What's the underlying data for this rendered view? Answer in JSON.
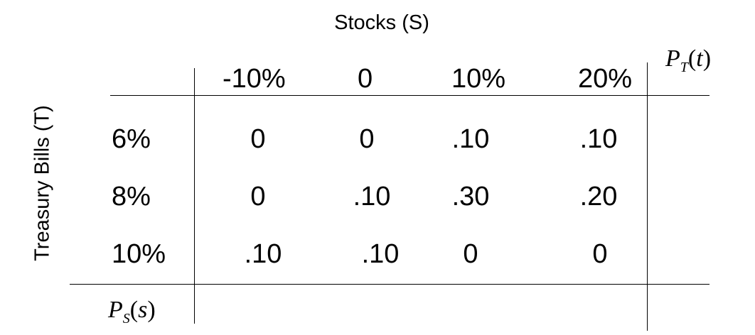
{
  "column_variable": "Stocks (S)",
  "row_variable": "Treasury Bills (T)",
  "column_headers": [
    "-10%",
    "0",
    "10%",
    "20%"
  ],
  "marginal_t": {
    "symbol": "P",
    "subscript": "T",
    "open": "(",
    "arg": "t",
    "close": ")"
  },
  "marginal_s": {
    "symbol": "P",
    "subscript": "S",
    "open": "(",
    "arg": "s",
    "close": ")"
  },
  "rows": [
    {
      "label": "6%",
      "values": [
        "0",
        "0",
        ".10",
        ".10"
      ]
    },
    {
      "label": "8%",
      "values": [
        "0",
        ".10",
        ".30",
        ".20"
      ]
    },
    {
      "label": "10%",
      "values": [
        ".10",
        ".10",
        "0",
        "0"
      ]
    }
  ]
}
